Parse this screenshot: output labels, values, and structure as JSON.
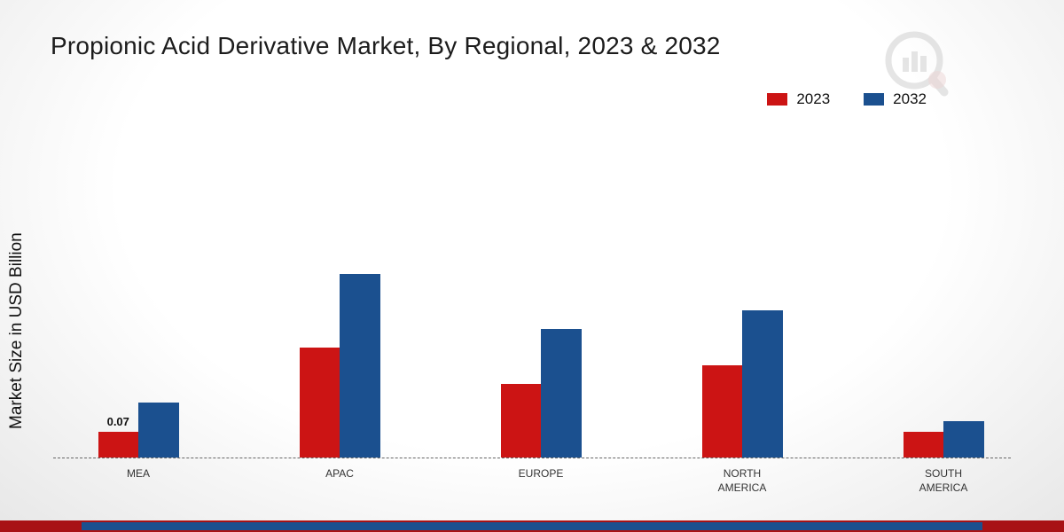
{
  "title": "Propionic Acid Derivative Market, By Regional, 2023 & 2032",
  "ylabel": "Market Size in USD Billion",
  "legend": [
    {
      "label": "2023",
      "color": "#cc1414"
    },
    {
      "label": "2032",
      "color": "#1b508f"
    }
  ],
  "chart_data": {
    "type": "bar",
    "title": "Propionic Acid Derivative Market, By Regional, 2023 & 2032",
    "xlabel": "",
    "ylabel": "Market Size in USD Billion",
    "categories": [
      "MEA",
      "APAC",
      "EUROPE",
      "NORTH AMERICA",
      "SOUTH AMERICA"
    ],
    "series": [
      {
        "name": "2023",
        "color": "#cc1414",
        "values": [
          0.07,
          0.3,
          0.2,
          0.25,
          0.07
        ]
      },
      {
        "name": "2032",
        "color": "#1b508f",
        "values": [
          0.15,
          0.5,
          0.35,
          0.4,
          0.1
        ]
      }
    ],
    "annotations": [
      {
        "category": "MEA",
        "series": "2023",
        "text": "0.07"
      }
    ],
    "ylim": [
      0,
      0.6
    ],
    "grid": false,
    "baseline_dashed": true,
    "legend_position": "top-right"
  },
  "watermark_icon": "chart-magnifier-logo",
  "footer": {
    "red_bar_color": "#a81215",
    "blue_bar_color": "#1b508f"
  }
}
